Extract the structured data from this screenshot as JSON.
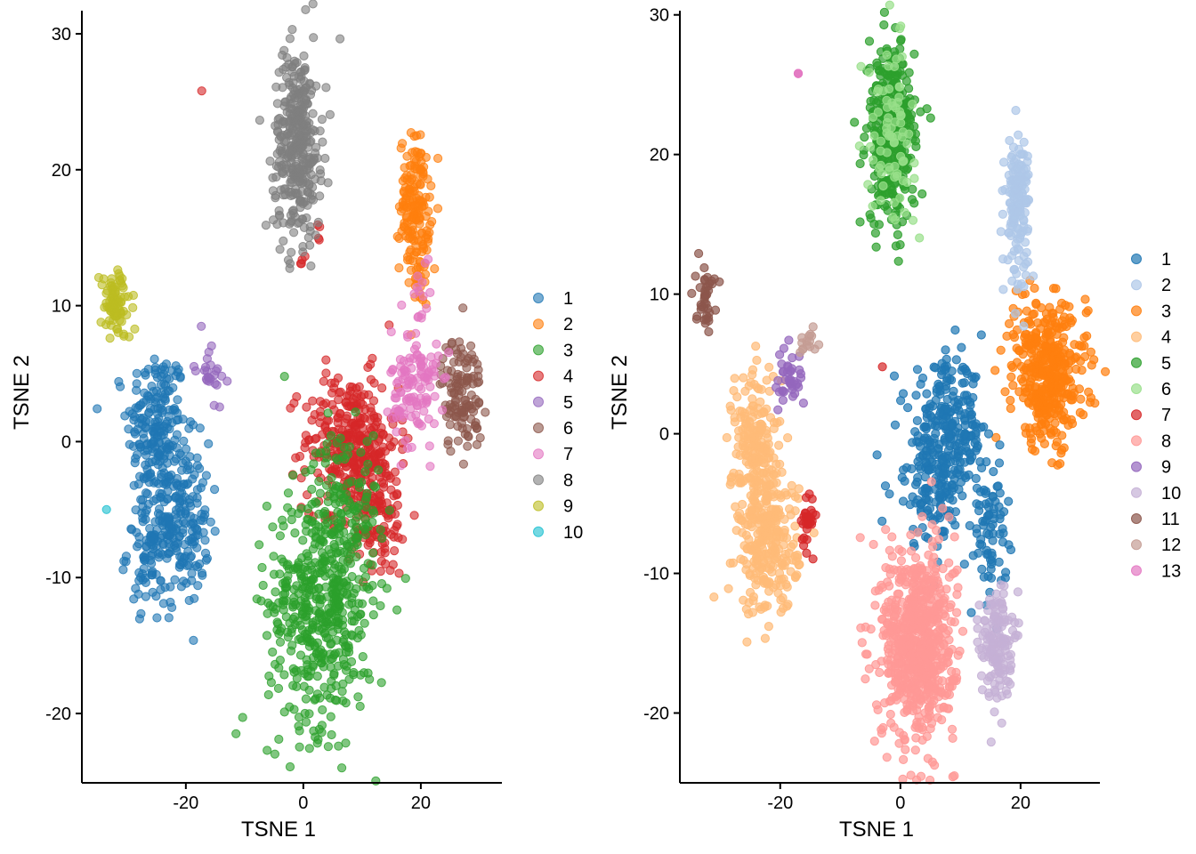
{
  "chart_data": [
    {
      "type": "scatter",
      "xlabel": "TSNE 1",
      "ylabel": "TSNE 2",
      "xlim": [
        -37.7,
        33.8
      ],
      "ylim": [
        -25.1,
        31.7
      ],
      "xticks": [
        -20,
        0,
        20
      ],
      "yticks": [
        -20,
        -10,
        0,
        10,
        20,
        30
      ],
      "legend_position": "right",
      "point_alpha": 0.6,
      "series": [
        {
          "name": "1",
          "color": "#1f77b4",
          "clusters": [
            [
              -25,
              1,
              2.5,
              3,
              200
            ],
            [
              -21,
              -6,
              2.5,
              3,
              200
            ],
            [
              -26,
              -8,
              2,
              2,
              80
            ]
          ]
        },
        {
          "name": "2",
          "color": "#ff7f0e",
          "clusters": [
            [
              19,
              17.5,
              1.3,
              2.5,
              150
            ],
            [
              20,
              13,
              0.8,
              1.5,
              30
            ]
          ]
        },
        {
          "name": "4",
          "color": "#d62728",
          "clusters": [
            [
              8,
              0,
              4,
              2.5,
              300
            ],
            [
              12,
              -5,
              3,
              2.5,
              150
            ],
            [
              0,
              13.3,
              0.3,
              0.3,
              4
            ],
            [
              2.5,
              15.3,
              0.5,
              0.5,
              4
            ],
            [
              -17.3,
              25.8,
              0,
              0,
              1
            ]
          ]
        },
        {
          "name": "3",
          "color": "#2ca02c",
          "clusters": [
            [
              3,
              -12,
              4.5,
              4.5,
              500
            ],
            [
              7,
              -5,
              3,
              3,
              100
            ],
            [
              -3.2,
              4.8,
              0,
              0,
              1
            ]
          ]
        },
        {
          "name": "5",
          "color": "#9467bd",
          "clusters": [
            [
              -16,
              5.5,
              1.2,
              1.2,
              25
            ]
          ]
        },
        {
          "name": "6",
          "color": "#8c564b",
          "clusters": [
            [
              27,
              3.5,
              1.8,
              2.2,
              120
            ]
          ]
        },
        {
          "name": "7",
          "color": "#e377c2",
          "clusters": [
            [
              19,
              4,
              2,
              2.2,
              120
            ],
            [
              20,
              10.5,
              0.8,
              1.5,
              15
            ]
          ]
        },
        {
          "name": "8",
          "color": "#7f7f7f",
          "clusters": [
            [
              -1,
              22,
              2,
              3.5,
              350
            ]
          ]
        },
        {
          "name": "9",
          "color": "#bcbd22",
          "clusters": [
            [
              -32,
              10,
              1.3,
              1.3,
              90
            ]
          ]
        },
        {
          "name": "10",
          "color": "#17becf",
          "clusters": [
            [
              -33.5,
              -5,
              0,
              0,
              1
            ]
          ]
        }
      ],
      "legend": [
        "1",
        "2",
        "3",
        "4",
        "5",
        "6",
        "7",
        "8",
        "9",
        "10"
      ],
      "legend_colors": [
        "#1f77b4",
        "#ff7f0e",
        "#2ca02c",
        "#d62728",
        "#9467bd",
        "#8c564b",
        "#e377c2",
        "#7f7f7f",
        "#bcbd22",
        "#17becf"
      ]
    },
    {
      "type": "scatter",
      "xlabel": "TSNE 1",
      "ylabel": "TSNE 2",
      "xlim": [
        -36.7,
        33.2
      ],
      "ylim": [
        -25.0,
        30.3
      ],
      "xticks": [
        -20,
        0,
        20
      ],
      "yticks": [
        -20,
        -10,
        0,
        10,
        20,
        30
      ],
      "legend_position": "right",
      "point_alpha": 0.7,
      "series": [
        {
          "name": "3",
          "color": "#ff7f0e",
          "clusters": [
            [
              25,
              4,
              3,
              2.5,
              350
            ],
            [
              21,
              7,
              1.5,
              1.5,
              50
            ]
          ]
        },
        {
          "name": "1",
          "color": "#1f77b4",
          "clusters": [
            [
              8,
              0,
              3,
              2.5,
              250
            ],
            [
              5,
              -4,
              3,
              2,
              100
            ],
            [
              15,
              -7,
              1.3,
              2.5,
              80
            ]
          ]
        },
        {
          "name": "2",
          "color": "#aec7e8",
          "clusters": [
            [
              19.5,
              16.5,
              1,
              2.5,
              150
            ]
          ]
        },
        {
          "name": "4",
          "color": "#ffbb78",
          "clusters": [
            [
              -24,
              -1,
              2,
              3,
              200
            ],
            [
              -22,
              -8,
              2.5,
              2.5,
              250
            ]
          ]
        },
        {
          "name": "5",
          "color": "#2ca02c",
          "clusters": [
            [
              -1.5,
              21.5,
              2,
              3.2,
              350
            ]
          ]
        },
        {
          "name": "6",
          "color": "#98df8a",
          "clusters": [
            [
              -1.5,
              21.5,
              2,
              3,
              80
            ]
          ]
        },
        {
          "name": "7",
          "color": "#d62728",
          "clusters": [
            [
              -15.5,
              -6,
              0.6,
              1,
              30
            ],
            [
              -3,
              4.8,
              0,
              0,
              1
            ]
          ]
        },
        {
          "name": "8",
          "color": "#ff9896",
          "clusters": [
            [
              3,
              -15,
              3,
              3.5,
              700
            ]
          ]
        },
        {
          "name": "9",
          "color": "#9467bd",
          "clusters": [
            [
              -18.5,
              4,
              1.3,
              1.2,
              40
            ]
          ]
        },
        {
          "name": "10",
          "color": "#c5b0d5",
          "clusters": [
            [
              16,
              -15,
              1.3,
              2,
              150
            ]
          ]
        },
        {
          "name": "11",
          "color": "#8c564b",
          "clusters": [
            [
              -32.5,
              10,
              0.8,
              1.2,
              40
            ]
          ]
        },
        {
          "name": "12",
          "color": "#c49c94",
          "clusters": [
            [
              -15.5,
              6.5,
              0.8,
              0.5,
              15
            ]
          ]
        },
        {
          "name": "13",
          "color": "#e377c2",
          "clusters": [
            [
              -17,
              25.8,
              0,
              0,
              3
            ]
          ]
        }
      ],
      "legend": [
        "1",
        "2",
        "3",
        "4",
        "5",
        "6",
        "7",
        "8",
        "9",
        "10",
        "11",
        "12",
        "13"
      ],
      "legend_colors": [
        "#1f77b4",
        "#aec7e8",
        "#ff7f0e",
        "#ffbb78",
        "#2ca02c",
        "#98df8a",
        "#d62728",
        "#ff9896",
        "#9467bd",
        "#c5b0d5",
        "#8c564b",
        "#c49c94",
        "#e377c2"
      ]
    }
  ]
}
